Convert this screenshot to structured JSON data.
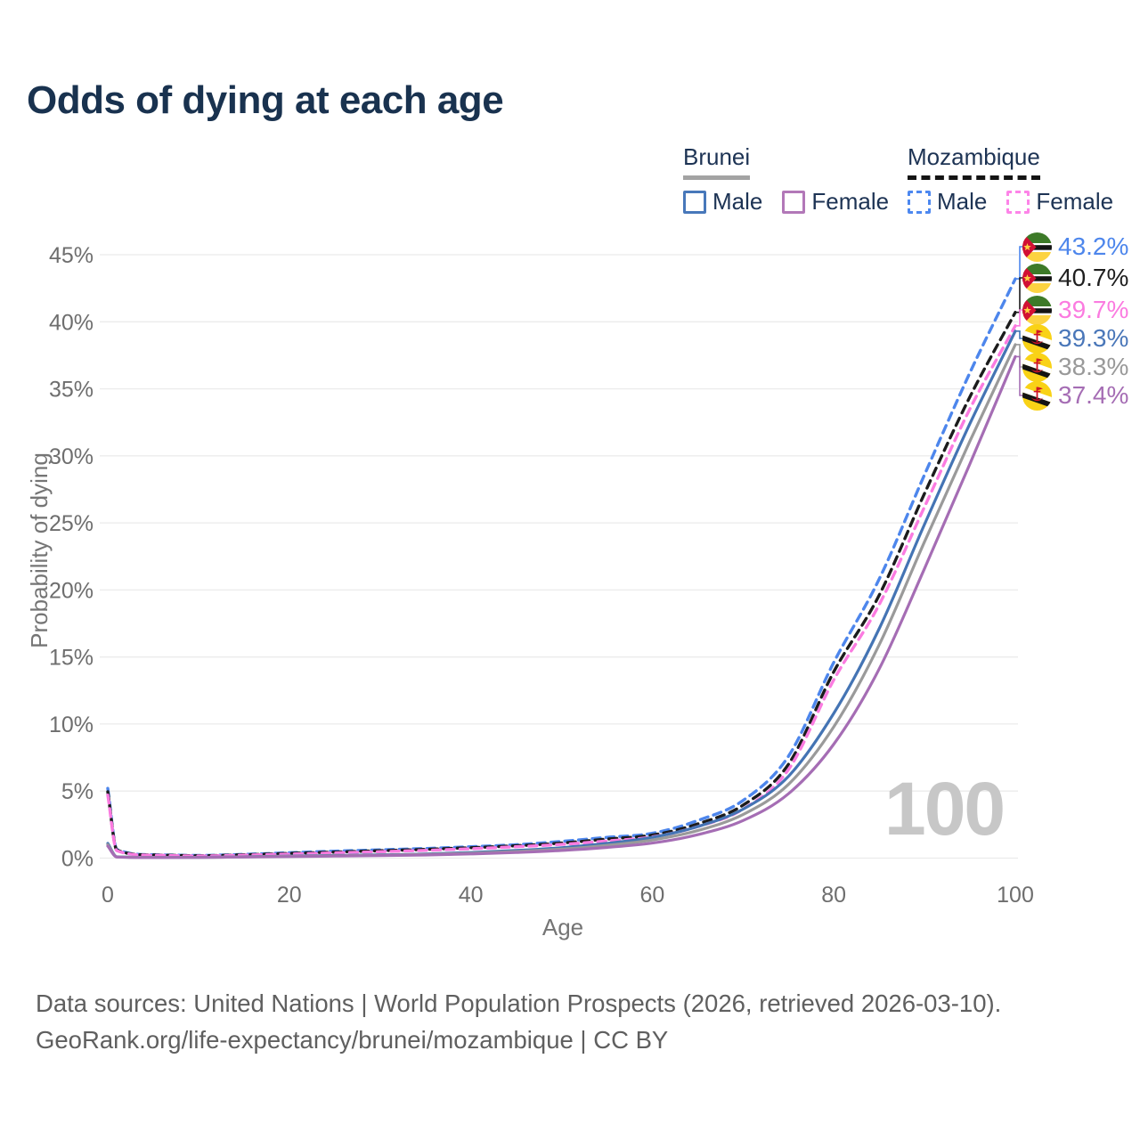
{
  "title": "Odds of dying at each age",
  "watermark": "100",
  "legend": {
    "brunei": {
      "country": "Brunei",
      "male": "Male",
      "female": "Female",
      "male_color": "#4878ba",
      "female_color": "#b278b8",
      "underline_color": "#a3a3a3",
      "underline_style": "solid"
    },
    "mozambique": {
      "country": "Mozambique",
      "male": "Male",
      "female": "Female",
      "male_color": "#4d88f0",
      "female_color": "#fd84e8",
      "underline_color": "#141414",
      "underline_style": "dashed"
    }
  },
  "end_labels": [
    {
      "value": "43.2%",
      "color": "#4d86ec",
      "flag": "mozambique",
      "series": "Mozambique Male"
    },
    {
      "value": "40.7%",
      "color": "#1f1f1f",
      "flag": "mozambique",
      "series": "Mozambique Both sexes"
    },
    {
      "value": "39.7%",
      "color": "#fb7be0",
      "flag": "mozambique",
      "series": "Mozambique Female"
    },
    {
      "value": "39.3%",
      "color": "#4a77b9",
      "flag": "brunei",
      "series": "Brunei Male"
    },
    {
      "value": "38.3%",
      "color": "#999999",
      "flag": "brunei",
      "series": "Brunei Both sexes"
    },
    {
      "value": "37.4%",
      "color": "#a56db4",
      "flag": "brunei",
      "series": "Brunei Female"
    }
  ],
  "footer": {
    "line1": "Data sources: United Nations | World Population Prospects (2026, retrieved 2026-03-10).",
    "line2": "GeoRank.org/life-expectancy/brunei/mozambique | CC BY"
  },
  "chart_data": {
    "type": "line",
    "title": "Odds of dying at each age",
    "xlabel": "Age",
    "ylabel": "Probability of dying",
    "xlim": [
      0,
      100
    ],
    "ylim": [
      0,
      45
    ],
    "x_ticks": [
      0,
      20,
      40,
      60,
      80,
      100
    ],
    "y_ticks": [
      0,
      5,
      10,
      15,
      20,
      25,
      30,
      35,
      40,
      45
    ],
    "y_tick_suffix": "%",
    "grid": "horizontal",
    "legend_position": "top-right",
    "x": [
      0,
      1,
      5,
      10,
      15,
      20,
      25,
      30,
      35,
      40,
      45,
      50,
      55,
      60,
      65,
      70,
      75,
      80,
      85,
      90,
      95,
      100
    ],
    "series": [
      {
        "name": "Mozambique Male",
        "color": "#4d86ec",
        "dashed": true,
        "end_value": 43.2,
        "values": [
          5.2,
          0.65,
          0.25,
          0.2,
          0.28,
          0.4,
          0.52,
          0.62,
          0.72,
          0.85,
          1.0,
          1.25,
          1.55,
          1.85,
          2.8,
          4.3,
          7.6,
          14.6,
          20.8,
          28.6,
          36.2,
          43.2
        ]
      },
      {
        "name": "Mozambique Both sexes",
        "color": "#1c1c1c",
        "dashed": true,
        "end_value": 40.7,
        "values": [
          4.95,
          0.6,
          0.23,
          0.18,
          0.25,
          0.35,
          0.45,
          0.55,
          0.65,
          0.78,
          0.92,
          1.12,
          1.42,
          1.72,
          2.55,
          3.95,
          7.0,
          13.9,
          19.6,
          27.2,
          34.4,
          40.7
        ]
      },
      {
        "name": "Mozambique Female",
        "color": "#fb7be0",
        "dashed": true,
        "end_value": 39.7,
        "values": [
          4.7,
          0.55,
          0.21,
          0.16,
          0.22,
          0.3,
          0.39,
          0.48,
          0.58,
          0.7,
          0.85,
          1.02,
          1.28,
          1.58,
          2.35,
          3.65,
          6.6,
          13.3,
          18.9,
          26.2,
          33.5,
          39.7
        ]
      },
      {
        "name": "Brunei Male",
        "color": "#4474b4",
        "dashed": false,
        "end_value": 39.3,
        "values": [
          1.1,
          0.1,
          0.05,
          0.06,
          0.1,
          0.15,
          0.2,
          0.25,
          0.31,
          0.42,
          0.57,
          0.78,
          1.1,
          1.55,
          2.35,
          3.65,
          6.1,
          10.8,
          17.1,
          24.9,
          32.4,
          39.3
        ]
      },
      {
        "name": "Brunei Both sexes",
        "color": "#9a9a9a",
        "dashed": false,
        "end_value": 38.3,
        "values": [
          1.0,
          0.09,
          0.05,
          0.05,
          0.09,
          0.13,
          0.17,
          0.22,
          0.27,
          0.36,
          0.49,
          0.67,
          0.95,
          1.35,
          2.05,
          3.25,
          5.5,
          9.8,
          15.9,
          23.6,
          31.1,
          38.3
        ]
      },
      {
        "name": "Brunei Female",
        "color": "#a56db4",
        "dashed": false,
        "end_value": 37.4,
        "values": [
          0.9,
          0.08,
          0.04,
          0.05,
          0.08,
          0.11,
          0.15,
          0.19,
          0.23,
          0.31,
          0.42,
          0.57,
          0.8,
          1.12,
          1.75,
          2.8,
          4.8,
          8.5,
          14.1,
          21.6,
          29.4,
          37.4
        ]
      }
    ]
  }
}
